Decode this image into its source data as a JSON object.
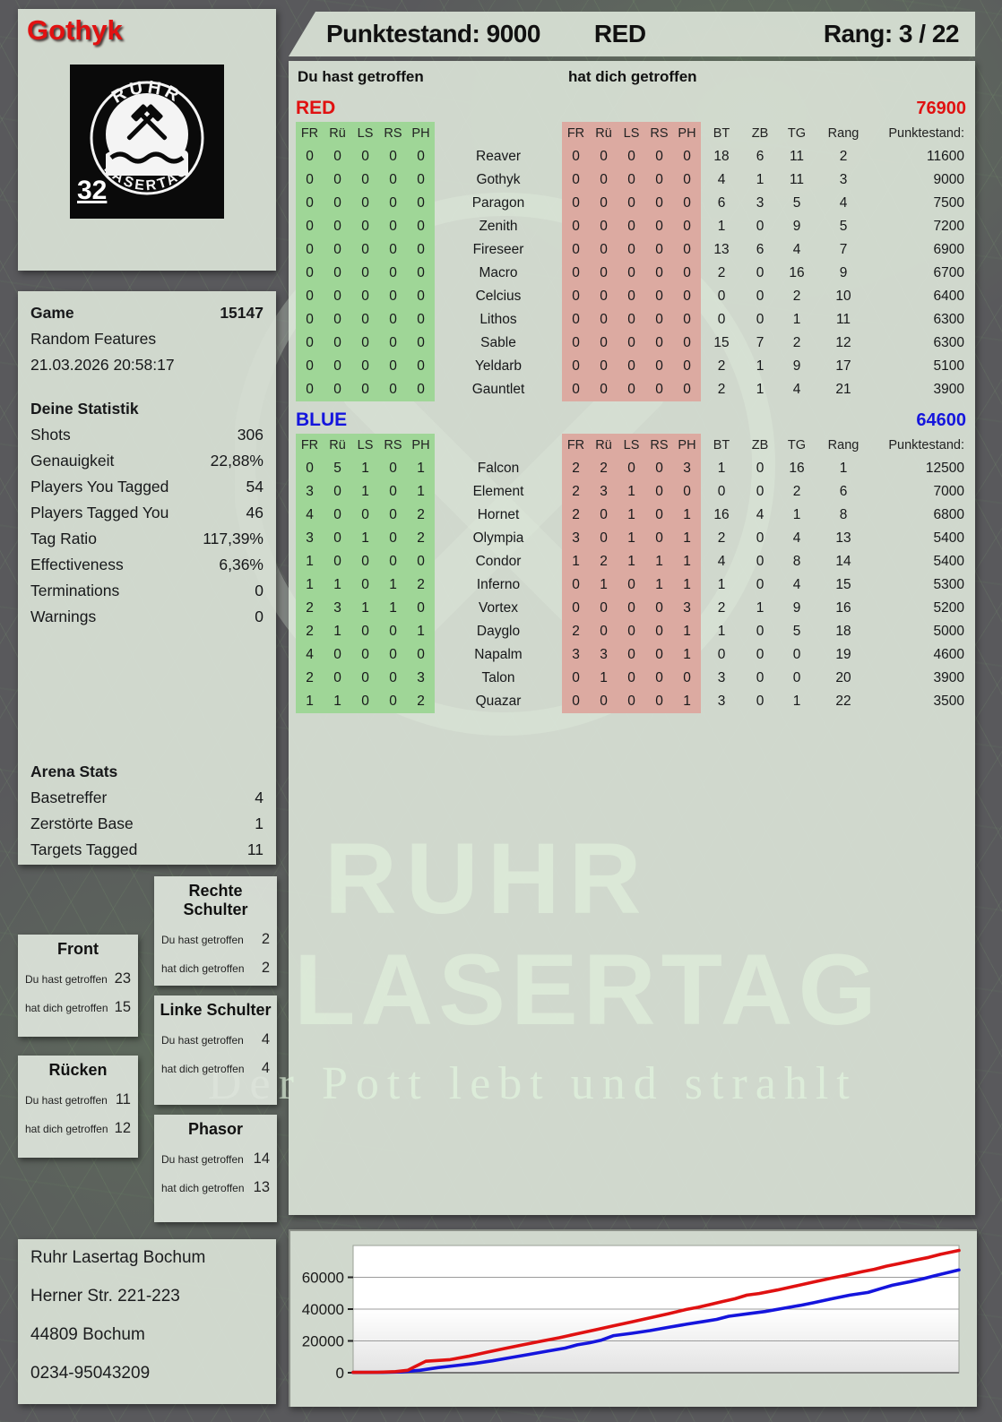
{
  "header": {
    "player": "Gothyk",
    "score_label": "Punktestand: 9000",
    "team": "RED",
    "rank_label": "Rang: 3 / 22"
  },
  "logo": {
    "top": "RUHR",
    "bottom": "LASERTAG",
    "number": "32"
  },
  "game": {
    "label": "Game",
    "id": "15147",
    "mode": "Random Features",
    "datetime": "21.03.2026 20:58:17"
  },
  "your_stats": {
    "title": "Deine Statistik",
    "rows": [
      {
        "label": "Shots",
        "value": "306"
      },
      {
        "label": "Genauigkeit",
        "value": "22,88%"
      },
      {
        "label": "Players You Tagged",
        "value": "54"
      },
      {
        "label": "Players Tagged You",
        "value": "46"
      },
      {
        "label": "Tag Ratio",
        "value": "117,39%"
      },
      {
        "label": "Effectiveness",
        "value": "6,36%"
      },
      {
        "label": "Terminations",
        "value": "0"
      },
      {
        "label": "Warnings",
        "value": "0"
      }
    ]
  },
  "arena_stats": {
    "title": "Arena Stats",
    "rows": [
      {
        "label": "Basetreffer",
        "value": "4"
      },
      {
        "label": "Zerstörte Base",
        "value": "1"
      },
      {
        "label": "Targets Tagged",
        "value": "11"
      }
    ]
  },
  "sections": {
    "you_hit": "Du hast getroffen",
    "hit_you": "hat dich getroffen"
  },
  "columns": {
    "hit": [
      "FR",
      "Rü",
      "LS",
      "RS",
      "PH"
    ],
    "stats": [
      "BT",
      "ZB",
      "TG",
      "Rang",
      "Punktestand:"
    ]
  },
  "teams": [
    {
      "name": "RED",
      "color": "#e01111",
      "total": "76900",
      "rows": [
        {
          "given": [
            0,
            0,
            0,
            0,
            0
          ],
          "name": "Reaver",
          "taken": [
            0,
            0,
            0,
            0,
            0
          ],
          "bt": "18",
          "zb": "6",
          "tg": "11",
          "rang": "2",
          "punkte": "11600"
        },
        {
          "given": [
            0,
            0,
            0,
            0,
            0
          ],
          "name": "Gothyk",
          "taken": [
            0,
            0,
            0,
            0,
            0
          ],
          "bt": "4",
          "zb": "1",
          "tg": "11",
          "rang": "3",
          "punkte": "9000"
        },
        {
          "given": [
            0,
            0,
            0,
            0,
            0
          ],
          "name": "Paragon",
          "taken": [
            0,
            0,
            0,
            0,
            0
          ],
          "bt": "6",
          "zb": "3",
          "tg": "5",
          "rang": "4",
          "punkte": "7500"
        },
        {
          "given": [
            0,
            0,
            0,
            0,
            0
          ],
          "name": "Zenith",
          "taken": [
            0,
            0,
            0,
            0,
            0
          ],
          "bt": "1",
          "zb": "0",
          "tg": "9",
          "rang": "5",
          "punkte": "7200"
        },
        {
          "given": [
            0,
            0,
            0,
            0,
            0
          ],
          "name": "Fireseer",
          "taken": [
            0,
            0,
            0,
            0,
            0
          ],
          "bt": "13",
          "zb": "6",
          "tg": "4",
          "rang": "7",
          "punkte": "6900"
        },
        {
          "given": [
            0,
            0,
            0,
            0,
            0
          ],
          "name": "Macro",
          "taken": [
            0,
            0,
            0,
            0,
            0
          ],
          "bt": "2",
          "zb": "0",
          "tg": "16",
          "rang": "9",
          "punkte": "6700"
        },
        {
          "given": [
            0,
            0,
            0,
            0,
            0
          ],
          "name": "Celcius",
          "taken": [
            0,
            0,
            0,
            0,
            0
          ],
          "bt": "0",
          "zb": "0",
          "tg": "2",
          "rang": "10",
          "punkte": "6400"
        },
        {
          "given": [
            0,
            0,
            0,
            0,
            0
          ],
          "name": "Lithos",
          "taken": [
            0,
            0,
            0,
            0,
            0
          ],
          "bt": "0",
          "zb": "0",
          "tg": "1",
          "rang": "11",
          "punkte": "6300"
        },
        {
          "given": [
            0,
            0,
            0,
            0,
            0
          ],
          "name": "Sable",
          "taken": [
            0,
            0,
            0,
            0,
            0
          ],
          "bt": "15",
          "zb": "7",
          "tg": "2",
          "rang": "12",
          "punkte": "6300"
        },
        {
          "given": [
            0,
            0,
            0,
            0,
            0
          ],
          "name": "Yeldarb",
          "taken": [
            0,
            0,
            0,
            0,
            0
          ],
          "bt": "2",
          "zb": "1",
          "tg": "9",
          "rang": "17",
          "punkte": "5100"
        },
        {
          "given": [
            0,
            0,
            0,
            0,
            0
          ],
          "name": "Gauntlet",
          "taken": [
            0,
            0,
            0,
            0,
            0
          ],
          "bt": "2",
          "zb": "1",
          "tg": "4",
          "rang": "21",
          "punkte": "3900"
        }
      ]
    },
    {
      "name": "BLUE",
      "color": "#1515dd",
      "total": "64600",
      "rows": [
        {
          "given": [
            0,
            5,
            1,
            0,
            1
          ],
          "name": "Falcon",
          "taken": [
            2,
            2,
            0,
            0,
            3
          ],
          "bt": "1",
          "zb": "0",
          "tg": "16",
          "rang": "1",
          "punkte": "12500"
        },
        {
          "given": [
            3,
            0,
            1,
            0,
            1
          ],
          "name": "Element",
          "taken": [
            2,
            3,
            1,
            0,
            0
          ],
          "bt": "0",
          "zb": "0",
          "tg": "2",
          "rang": "6",
          "punkte": "7000"
        },
        {
          "given": [
            4,
            0,
            0,
            0,
            2
          ],
          "name": "Hornet",
          "taken": [
            2,
            0,
            1,
            0,
            1
          ],
          "bt": "16",
          "zb": "4",
          "tg": "1",
          "rang": "8",
          "punkte": "6800"
        },
        {
          "given": [
            3,
            0,
            1,
            0,
            2
          ],
          "name": "Olympia",
          "taken": [
            3,
            0,
            1,
            0,
            1
          ],
          "bt": "2",
          "zb": "0",
          "tg": "4",
          "rang": "13",
          "punkte": "5400"
        },
        {
          "given": [
            1,
            0,
            0,
            0,
            0
          ],
          "name": "Condor",
          "taken": [
            1,
            2,
            1,
            1,
            1
          ],
          "bt": "4",
          "zb": "0",
          "tg": "8",
          "rang": "14",
          "punkte": "5400"
        },
        {
          "given": [
            1,
            1,
            0,
            1,
            2
          ],
          "name": "Inferno",
          "taken": [
            0,
            1,
            0,
            1,
            1
          ],
          "bt": "1",
          "zb": "0",
          "tg": "4",
          "rang": "15",
          "punkte": "5300"
        },
        {
          "given": [
            2,
            3,
            1,
            1,
            0
          ],
          "name": "Vortex",
          "taken": [
            0,
            0,
            0,
            0,
            3
          ],
          "bt": "2",
          "zb": "1",
          "tg": "9",
          "rang": "16",
          "punkte": "5200"
        },
        {
          "given": [
            2,
            1,
            0,
            0,
            1
          ],
          "name": "Dayglo",
          "taken": [
            2,
            0,
            0,
            0,
            1
          ],
          "bt": "1",
          "zb": "0",
          "tg": "5",
          "rang": "18",
          "punkte": "5000"
        },
        {
          "given": [
            4,
            0,
            0,
            0,
            0
          ],
          "name": "Napalm",
          "taken": [
            3,
            3,
            0,
            0,
            1
          ],
          "bt": "0",
          "zb": "0",
          "tg": "0",
          "rang": "19",
          "punkte": "4600"
        },
        {
          "given": [
            2,
            0,
            0,
            0,
            3
          ],
          "name": "Talon",
          "taken": [
            0,
            1,
            0,
            0,
            0
          ],
          "bt": "3",
          "zb": "0",
          "tg": "0",
          "rang": "20",
          "punkte": "3900"
        },
        {
          "given": [
            1,
            1,
            0,
            0,
            2
          ],
          "name": "Quazar",
          "taken": [
            0,
            0,
            0,
            0,
            1
          ],
          "bt": "3",
          "zb": "0",
          "tg": "1",
          "rang": "22",
          "punkte": "3500"
        }
      ]
    }
  ],
  "bodypart_labels": {
    "hit": "Du hast getroffen",
    "taken": "hat dich getroffen"
  },
  "bodyparts": [
    {
      "title": "Front",
      "hit": "23",
      "taken": "15"
    },
    {
      "title": "Rücken",
      "hit": "11",
      "taken": "12"
    },
    {
      "title": "Rechte Schulter",
      "hit": "2",
      "taken": "2"
    },
    {
      "title": "Linke Schulter",
      "hit": "4",
      "taken": "4"
    },
    {
      "title": "Phasor",
      "hit": "14",
      "taken": "13"
    }
  ],
  "address": {
    "lines": [
      "Ruhr Lasertag Bochum",
      "Herner Str. 221-223",
      "44809 Bochum",
      "0234-95043209"
    ]
  },
  "watermark": {
    "line1": "RUHR",
    "line2": "LASERTAG",
    "slogan": "Der Pott lebt und strahlt"
  },
  "colors": {
    "red_team": "#e01111",
    "blue_team": "#1515dd",
    "given_block": "#9fd697",
    "taken_block": "#dcaaa1",
    "panel": "#d8e0d4",
    "background": "#59595c"
  },
  "chart_data": {
    "type": "line",
    "title": "",
    "xlabel": "",
    "ylabel": "",
    "ylim": [
      0,
      80000
    ],
    "yticks": [
      0,
      20000,
      40000,
      60000
    ],
    "grid": true,
    "legend_position": "none",
    "series": [
      {
        "name": "RED",
        "color": "#e01111",
        "points": [
          [
            0,
            200
          ],
          [
            4,
            300
          ],
          [
            7,
            700
          ],
          [
            9,
            1500
          ],
          [
            12,
            7200
          ],
          [
            14,
            7700
          ],
          [
            16,
            8200
          ],
          [
            19,
            10300
          ],
          [
            22,
            12800
          ],
          [
            25,
            15200
          ],
          [
            28,
            17500
          ],
          [
            31,
            19800
          ],
          [
            34,
            22000
          ],
          [
            37,
            24500
          ],
          [
            40,
            27000
          ],
          [
            43,
            29500
          ],
          [
            46,
            32000
          ],
          [
            49,
            34500
          ],
          [
            52,
            37000
          ],
          [
            55,
            39800
          ],
          [
            57,
            41200
          ],
          [
            59,
            43000
          ],
          [
            61,
            44800
          ],
          [
            63,
            46500
          ],
          [
            65,
            48800
          ],
          [
            67,
            49800
          ],
          [
            70,
            52000
          ],
          [
            73,
            54500
          ],
          [
            76,
            57000
          ],
          [
            79,
            59500
          ],
          [
            81,
            61000
          ],
          [
            84,
            63500
          ],
          [
            86,
            65000
          ],
          [
            88,
            67000
          ],
          [
            90,
            68500
          ],
          [
            93,
            71000
          ],
          [
            95,
            72500
          ],
          [
            97,
            74500
          ],
          [
            100,
            76900
          ]
        ]
      },
      {
        "name": "BLUE",
        "color": "#1515dd",
        "points": [
          [
            0,
            150
          ],
          [
            5,
            200
          ],
          [
            8,
            500
          ],
          [
            11,
            1500
          ],
          [
            14,
            3200
          ],
          [
            17,
            4500
          ],
          [
            20,
            5800
          ],
          [
            23,
            7500
          ],
          [
            26,
            9500
          ],
          [
            29,
            11500
          ],
          [
            32,
            13500
          ],
          [
            35,
            15500
          ],
          [
            37,
            17500
          ],
          [
            39,
            18800
          ],
          [
            41,
            20500
          ],
          [
            43,
            23300
          ],
          [
            46,
            24800
          ],
          [
            49,
            26500
          ],
          [
            52,
            28500
          ],
          [
            55,
            30500
          ],
          [
            58,
            32300
          ],
          [
            60,
            33500
          ],
          [
            62,
            35500
          ],
          [
            65,
            37000
          ],
          [
            68,
            38500
          ],
          [
            71,
            40500
          ],
          [
            74,
            42500
          ],
          [
            76,
            44000
          ],
          [
            79,
            46500
          ],
          [
            82,
            48800
          ],
          [
            85,
            50500
          ],
          [
            87,
            52800
          ],
          [
            89,
            55000
          ],
          [
            92,
            57300
          ],
          [
            94,
            59000
          ],
          [
            96,
            61000
          ],
          [
            98,
            62800
          ],
          [
            100,
            64600
          ]
        ]
      }
    ]
  }
}
